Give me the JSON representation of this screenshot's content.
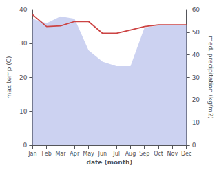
{
  "chart_data": {
    "type": "line",
    "xlabel": "date (month)",
    "ylabel": "max temp (C)",
    "y2label": "med. precipitation (kg/m2)",
    "categories": [
      "Jan",
      "Feb",
      "Mar",
      "Apr",
      "May",
      "Jun",
      "Jul",
      "Aug",
      "Sep",
      "Oct",
      "Nov",
      "Dec"
    ],
    "series": [
      {
        "type": "area",
        "axis": "y2",
        "color": "#aab4e8",
        "values": [
          56,
          54,
          57,
          56,
          42,
          37,
          35,
          35,
          52,
          53,
          53,
          53
        ]
      },
      {
        "type": "line",
        "color": "#cc4444",
        "values": [
          38.5,
          35.0,
          35.2,
          36.5,
          36.5,
          33.0,
          33.0,
          34.0,
          35.0,
          35.5,
          35.5,
          35.5
        ]
      }
    ],
    "ylim": [
      0,
      40
    ],
    "yticks": [
      0,
      10,
      20,
      30,
      40
    ],
    "y2lim": [
      0,
      60
    ],
    "y2ticks": [
      0,
      10,
      20,
      30,
      40,
      50,
      60
    ],
    "grid": false
  }
}
